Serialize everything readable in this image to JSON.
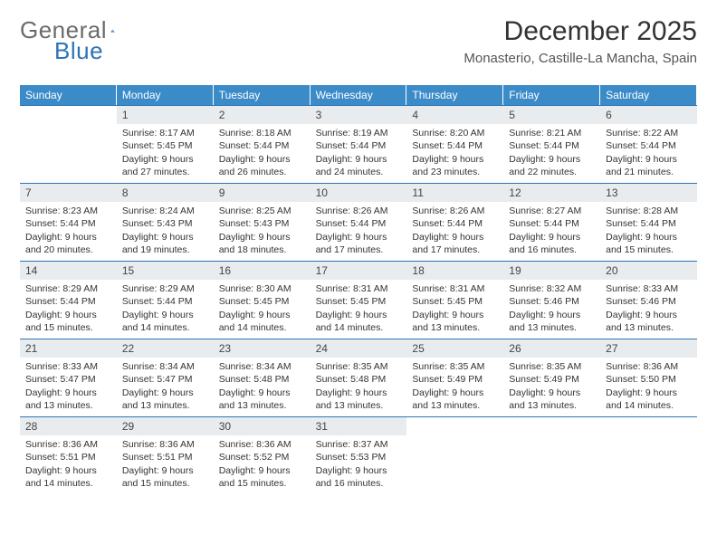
{
  "logo": {
    "text1": "General",
    "text2": "Blue"
  },
  "title": "December 2025",
  "location": "Monasterio, Castille-La Mancha, Spain",
  "colors": {
    "header_bg": "#3b8bc9",
    "header_text": "#ffffff",
    "border": "#2d74b5",
    "daynum_bg": "#e9ecef",
    "text": "#333333",
    "logo_gray": "#6b6b6b",
    "logo_blue": "#2d74b5",
    "background": "#ffffff"
  },
  "weekdays": [
    "Sunday",
    "Monday",
    "Tuesday",
    "Wednesday",
    "Thursday",
    "Friday",
    "Saturday"
  ],
  "start_offset": 1,
  "days": [
    {
      "n": "1",
      "sunrise": "8:17 AM",
      "sunset": "5:45 PM",
      "daylight": "9 hours and 27 minutes."
    },
    {
      "n": "2",
      "sunrise": "8:18 AM",
      "sunset": "5:44 PM",
      "daylight": "9 hours and 26 minutes."
    },
    {
      "n": "3",
      "sunrise": "8:19 AM",
      "sunset": "5:44 PM",
      "daylight": "9 hours and 24 minutes."
    },
    {
      "n": "4",
      "sunrise": "8:20 AM",
      "sunset": "5:44 PM",
      "daylight": "9 hours and 23 minutes."
    },
    {
      "n": "5",
      "sunrise": "8:21 AM",
      "sunset": "5:44 PM",
      "daylight": "9 hours and 22 minutes."
    },
    {
      "n": "6",
      "sunrise": "8:22 AM",
      "sunset": "5:44 PM",
      "daylight": "9 hours and 21 minutes."
    },
    {
      "n": "7",
      "sunrise": "8:23 AM",
      "sunset": "5:44 PM",
      "daylight": "9 hours and 20 minutes."
    },
    {
      "n": "8",
      "sunrise": "8:24 AM",
      "sunset": "5:43 PM",
      "daylight": "9 hours and 19 minutes."
    },
    {
      "n": "9",
      "sunrise": "8:25 AM",
      "sunset": "5:43 PM",
      "daylight": "9 hours and 18 minutes."
    },
    {
      "n": "10",
      "sunrise": "8:26 AM",
      "sunset": "5:44 PM",
      "daylight": "9 hours and 17 minutes."
    },
    {
      "n": "11",
      "sunrise": "8:26 AM",
      "sunset": "5:44 PM",
      "daylight": "9 hours and 17 minutes."
    },
    {
      "n": "12",
      "sunrise": "8:27 AM",
      "sunset": "5:44 PM",
      "daylight": "9 hours and 16 minutes."
    },
    {
      "n": "13",
      "sunrise": "8:28 AM",
      "sunset": "5:44 PM",
      "daylight": "9 hours and 15 minutes."
    },
    {
      "n": "14",
      "sunrise": "8:29 AM",
      "sunset": "5:44 PM",
      "daylight": "9 hours and 15 minutes."
    },
    {
      "n": "15",
      "sunrise": "8:29 AM",
      "sunset": "5:44 PM",
      "daylight": "9 hours and 14 minutes."
    },
    {
      "n": "16",
      "sunrise": "8:30 AM",
      "sunset": "5:45 PM",
      "daylight": "9 hours and 14 minutes."
    },
    {
      "n": "17",
      "sunrise": "8:31 AM",
      "sunset": "5:45 PM",
      "daylight": "9 hours and 14 minutes."
    },
    {
      "n": "18",
      "sunrise": "8:31 AM",
      "sunset": "5:45 PM",
      "daylight": "9 hours and 13 minutes."
    },
    {
      "n": "19",
      "sunrise": "8:32 AM",
      "sunset": "5:46 PM",
      "daylight": "9 hours and 13 minutes."
    },
    {
      "n": "20",
      "sunrise": "8:33 AM",
      "sunset": "5:46 PM",
      "daylight": "9 hours and 13 minutes."
    },
    {
      "n": "21",
      "sunrise": "8:33 AM",
      "sunset": "5:47 PM",
      "daylight": "9 hours and 13 minutes."
    },
    {
      "n": "22",
      "sunrise": "8:34 AM",
      "sunset": "5:47 PM",
      "daylight": "9 hours and 13 minutes."
    },
    {
      "n": "23",
      "sunrise": "8:34 AM",
      "sunset": "5:48 PM",
      "daylight": "9 hours and 13 minutes."
    },
    {
      "n": "24",
      "sunrise": "8:35 AM",
      "sunset": "5:48 PM",
      "daylight": "9 hours and 13 minutes."
    },
    {
      "n": "25",
      "sunrise": "8:35 AM",
      "sunset": "5:49 PM",
      "daylight": "9 hours and 13 minutes."
    },
    {
      "n": "26",
      "sunrise": "8:35 AM",
      "sunset": "5:49 PM",
      "daylight": "9 hours and 13 minutes."
    },
    {
      "n": "27",
      "sunrise": "8:36 AM",
      "sunset": "5:50 PM",
      "daylight": "9 hours and 14 minutes."
    },
    {
      "n": "28",
      "sunrise": "8:36 AM",
      "sunset": "5:51 PM",
      "daylight": "9 hours and 14 minutes."
    },
    {
      "n": "29",
      "sunrise": "8:36 AM",
      "sunset": "5:51 PM",
      "daylight": "9 hours and 15 minutes."
    },
    {
      "n": "30",
      "sunrise": "8:36 AM",
      "sunset": "5:52 PM",
      "daylight": "9 hours and 15 minutes."
    },
    {
      "n": "31",
      "sunrise": "8:37 AM",
      "sunset": "5:53 PM",
      "daylight": "9 hours and 16 minutes."
    }
  ],
  "labels": {
    "sunrise": "Sunrise:",
    "sunset": "Sunset:",
    "daylight": "Daylight:"
  }
}
